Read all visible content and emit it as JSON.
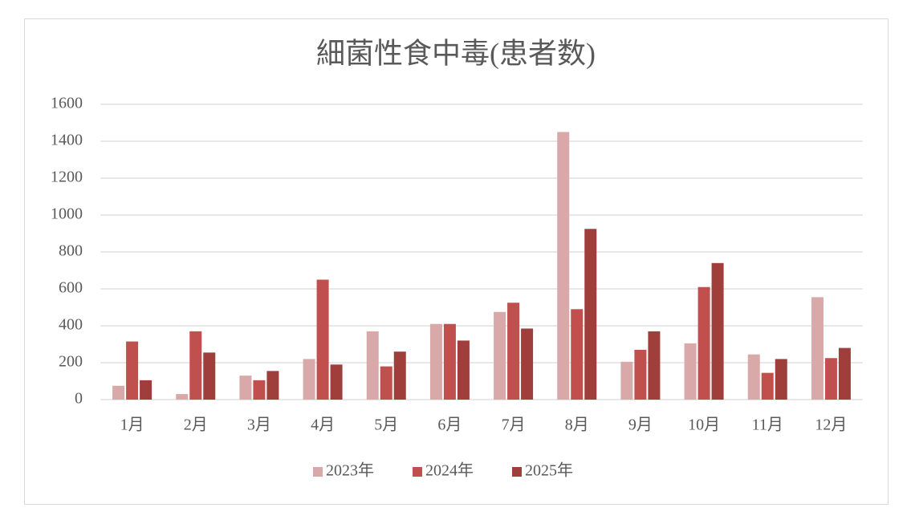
{
  "chart_data": {
    "type": "bar",
    "title": "細菌性食中毒(患者数)",
    "categories": [
      "1月",
      "2月",
      "3月",
      "4月",
      "5月",
      "6月",
      "7月",
      "8月",
      "9月",
      "10月",
      "11月",
      "12月"
    ],
    "series": [
      {
        "name": "2023年",
        "color": "#d9a8a8",
        "values": [
          75,
          30,
          130,
          220,
          370,
          410,
          475,
          1450,
          205,
          305,
          245,
          555
        ]
      },
      {
        "name": "2024年",
        "color": "#c0504d",
        "values": [
          315,
          370,
          105,
          650,
          180,
          410,
          525,
          490,
          270,
          610,
          145,
          225
        ]
      },
      {
        "name": "2025年",
        "color": "#a03e3c",
        "values": [
          105,
          255,
          155,
          190,
          260,
          320,
          385,
          925,
          370,
          740,
          220,
          280
        ]
      }
    ],
    "ylim": [
      0,
      1600
    ],
    "yticks": [
      0,
      200,
      400,
      600,
      800,
      1000,
      1200,
      1400,
      1600
    ],
    "grid": true,
    "legend": "bottom"
  }
}
